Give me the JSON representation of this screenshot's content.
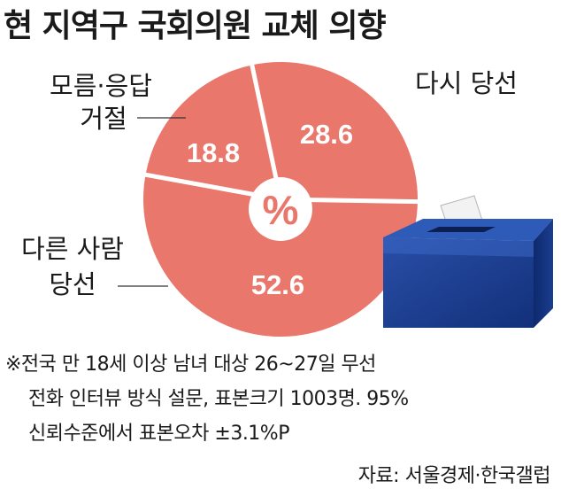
{
  "title": "현 지역구 국회의원 교체 의향",
  "chart_data": {
    "type": "pie",
    "unit": "%",
    "slices": [
      {
        "name": "다시 당선",
        "value": 28.6
      },
      {
        "name": "다른 사람 당선",
        "value": 52.6
      },
      {
        "name": "모름·응답 거절",
        "value": 18.8
      }
    ],
    "labels": {
      "s0": [
        "다시 당선"
      ],
      "s1": [
        "다른 사람",
        "당선"
      ],
      "s2": [
        "모름·응답",
        "거절"
      ]
    },
    "values_text": [
      "28.6",
      "52.6",
      "18.8"
    ],
    "colors": {
      "slice": "#e9776b",
      "divider": "#ffffff",
      "center": "#ffffff",
      "center_text": "#e9776b"
    }
  },
  "note": {
    "line1": "※전국 만 18세 이상 남녀 대상 26~27일 무선",
    "line2": "전화 인터뷰 방식 설문, 표본크기 1003명. 95%",
    "line3": "신뢰수준에서 표본오차 ±3.1%P"
  },
  "source": "자료: 서울경제·한국갤럽",
  "icons": [
    "ballot-box-icon"
  ]
}
